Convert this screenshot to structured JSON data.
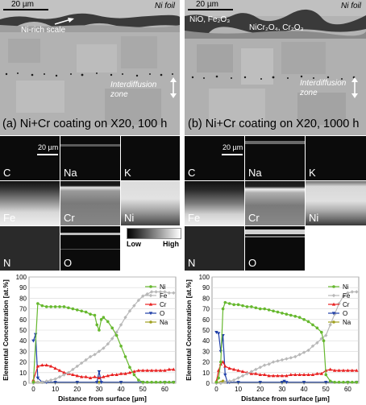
{
  "sem_a": {
    "scale": "20 µm",
    "foil": "Ni foil",
    "scale_label": "Ni-rich scale",
    "zone_label": "Interdiffusion zone"
  },
  "sem_b": {
    "scale": "20 µm",
    "foil": "Ni foil",
    "oxide1": "NiO, Fe₂O₃",
    "oxide2": "NiCr₂O₄, Cr₂O₃",
    "zone_label": "Interdiffusion zone"
  },
  "caption_a": "(a) Ni+Cr coating on X20, 100 h",
  "caption_b": "(b) Ni+Cr coating on X20, 1000 h",
  "maps_a": {
    "scale": "20 µm",
    "C": "C",
    "Na": "Na",
    "K": "K",
    "Fe": "Fe",
    "Cr": "Cr",
    "Ni": "Ni",
    "N": "N",
    "O": "O"
  },
  "maps_b": {
    "scale": "20 µm",
    "C": "C",
    "Na": "Na",
    "K": "K",
    "Fe": "Fe",
    "Cr": "Cr",
    "Ni": "Ni",
    "N": "N",
    "O": "O"
  },
  "colorbar": {
    "low": "Low",
    "high": "High"
  },
  "colors": {
    "Ni": "#66b82e",
    "Fe": "#b8b8b8",
    "Cr": "#e82020",
    "O": "#1f3fa8",
    "Na": "#a0a020"
  },
  "chart_data": [
    {
      "type": "line",
      "xlabel": "Distance from surface [µm]",
      "ylabel": "Elemental Concentration [at.%]",
      "xlim": [
        -2,
        65
      ],
      "ylim": [
        0,
        100
      ],
      "xticks": [
        0,
        10,
        20,
        30,
        40,
        50,
        60
      ],
      "yticks": [
        0,
        10,
        20,
        30,
        40,
        50,
        60,
        70,
        80,
        90,
        100
      ],
      "legend": "right",
      "series": [
        {
          "name": "Ni",
          "x": [
            0,
            2,
            4,
            6,
            8,
            10,
            12,
            14,
            16,
            18,
            20,
            22,
            24,
            26,
            28,
            29,
            30,
            31,
            32,
            34,
            36,
            38,
            40,
            42,
            44,
            46,
            48,
            50,
            52,
            54,
            56,
            58,
            60,
            62,
            64
          ],
          "y": [
            1,
            75,
            73,
            72,
            72,
            72,
            72,
            72,
            71,
            70,
            69,
            68,
            67,
            65,
            64,
            55,
            50,
            60,
            62,
            58,
            52,
            45,
            35,
            25,
            15,
            8,
            3,
            1,
            1,
            1,
            1,
            1,
            1,
            1,
            1
          ]
        },
        {
          "name": "Fe",
          "x": [
            0,
            2,
            4,
            6,
            8,
            10,
            12,
            14,
            16,
            18,
            20,
            22,
            24,
            26,
            28,
            30,
            32,
            34,
            36,
            38,
            40,
            42,
            44,
            46,
            48,
            50,
            52,
            54,
            56,
            58,
            60,
            62,
            64
          ],
          "y": [
            0,
            1,
            1,
            2,
            3,
            4,
            6,
            8,
            10,
            13,
            16,
            19,
            22,
            25,
            27,
            30,
            33,
            37,
            42,
            48,
            55,
            62,
            68,
            73,
            78,
            82,
            84,
            86,
            86,
            86,
            86,
            85,
            85
          ]
        },
        {
          "name": "Cr",
          "x": [
            0,
            2,
            4,
            6,
            8,
            10,
            12,
            14,
            16,
            18,
            20,
            22,
            24,
            26,
            28,
            30,
            32,
            34,
            36,
            38,
            40,
            42,
            44,
            46,
            48,
            50,
            52,
            54,
            56,
            58,
            60,
            62,
            64
          ],
          "y": [
            3,
            16,
            17,
            17,
            16,
            14,
            12,
            10,
            9,
            8,
            7,
            6,
            6,
            5,
            6,
            5,
            6,
            7,
            8,
            8,
            9,
            9,
            10,
            11,
            12,
            12,
            12,
            12,
            12,
            12,
            12,
            13,
            13
          ]
        },
        {
          "name": "O",
          "x": [
            0,
            1,
            2,
            4,
            6,
            10,
            20,
            29,
            30,
            31,
            40,
            50,
            60,
            64
          ],
          "y": [
            40,
            46,
            5,
            1,
            1,
            1,
            1,
            1,
            11,
            1,
            1,
            1,
            1,
            1
          ]
        },
        {
          "name": "Na",
          "x": [
            0,
            2,
            4,
            10,
            20,
            30,
            40,
            50,
            60,
            64
          ],
          "y": [
            1,
            1,
            1,
            1,
            1,
            1,
            1,
            1,
            1,
            1
          ]
        }
      ]
    },
    {
      "type": "line",
      "xlabel": "Distance from surface [µm]",
      "ylabel": "Elemental Concentration [at.%]",
      "xlim": [
        -2,
        65
      ],
      "ylim": [
        0,
        100
      ],
      "xticks": [
        0,
        10,
        20,
        30,
        40,
        50,
        60
      ],
      "yticks": [
        0,
        10,
        20,
        30,
        40,
        50,
        60,
        70,
        80,
        90,
        100
      ],
      "legend": "right",
      "series": [
        {
          "name": "Ni",
          "x": [
            0,
            1,
            2,
            3,
            4,
            6,
            8,
            10,
            12,
            14,
            16,
            18,
            20,
            22,
            24,
            26,
            28,
            30,
            32,
            34,
            36,
            38,
            40,
            42,
            44,
            46,
            48,
            49,
            50,
            52,
            54,
            56,
            58,
            60,
            62,
            64
          ],
          "y": [
            1,
            5,
            20,
            70,
            76,
            75,
            74,
            74,
            73,
            72,
            72,
            71,
            70,
            70,
            69,
            68,
            67,
            66,
            65,
            64,
            63,
            62,
            60,
            58,
            55,
            52,
            48,
            40,
            8,
            2,
            1,
            1,
            1,
            1,
            1,
            1
          ]
        },
        {
          "name": "Fe",
          "x": [
            0,
            2,
            4,
            6,
            8,
            10,
            12,
            14,
            16,
            18,
            20,
            22,
            24,
            26,
            28,
            30,
            32,
            34,
            36,
            38,
            40,
            42,
            44,
            46,
            48,
            50,
            52,
            54,
            56,
            58,
            60,
            62,
            64
          ],
          "y": [
            0,
            0,
            1,
            2,
            3,
            5,
            7,
            9,
            11,
            13,
            15,
            17,
            18,
            20,
            21,
            22,
            23,
            24,
            25,
            27,
            29,
            31,
            35,
            38,
            42,
            45,
            55,
            65,
            75,
            82,
            85,
            86,
            86
          ]
        },
        {
          "name": "Cr",
          "x": [
            0,
            1,
            2,
            3,
            4,
            6,
            8,
            10,
            12,
            14,
            16,
            18,
            20,
            22,
            24,
            26,
            28,
            30,
            32,
            34,
            36,
            38,
            40,
            42,
            44,
            46,
            48,
            50,
            52,
            54,
            56,
            58,
            60,
            62,
            64
          ],
          "y": [
            2,
            12,
            18,
            20,
            16,
            14,
            13,
            12,
            11,
            10,
            9,
            9,
            8,
            8,
            7,
            7,
            7,
            7,
            7,
            8,
            8,
            8,
            8,
            8,
            8,
            9,
            9,
            12,
            13,
            12,
            12,
            12,
            12,
            12,
            12
          ]
        },
        {
          "name": "O",
          "x": [
            0,
            1,
            2,
            3,
            4,
            5,
            6,
            10,
            20,
            30,
            31,
            32,
            40,
            50,
            60,
            64
          ],
          "y": [
            48,
            47,
            30,
            45,
            8,
            1,
            1,
            1,
            1,
            1,
            2,
            1,
            1,
            1,
            1,
            1
          ]
        },
        {
          "name": "Na",
          "x": [
            0,
            2,
            3,
            4,
            10,
            20,
            30,
            40,
            50,
            60,
            64
          ],
          "y": [
            1,
            1,
            2,
            1,
            1,
            1,
            1,
            1,
            1,
            1,
            1
          ]
        }
      ]
    }
  ]
}
